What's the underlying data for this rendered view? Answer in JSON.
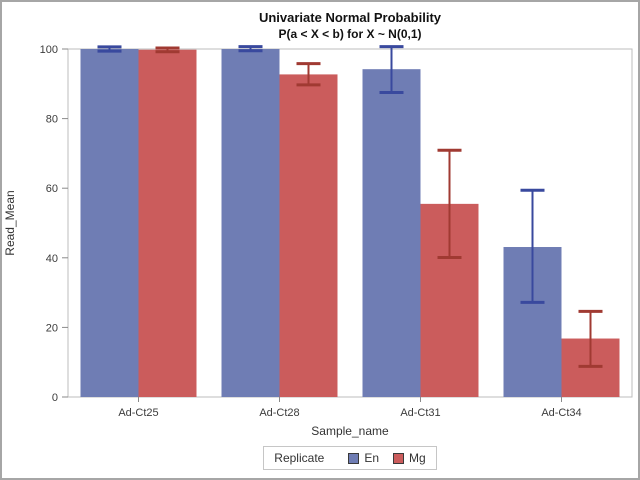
{
  "figure": {
    "title": "Univariate Normal Probability",
    "subtitle": "P(a < X < b) for X ~ N(0,1)"
  },
  "chart_data": {
    "type": "bar",
    "title": "Univariate Normal Probability",
    "subtitle": "P(a < X < b) for X ~ N(0,1)",
    "xlabel": "Sample_name",
    "ylabel": "Read_Mean",
    "categories": [
      "Ad-Ct25",
      "Ad-Ct28",
      "Ad-Ct31",
      "Ad-Ct34"
    ],
    "series": [
      {
        "name": "En",
        "color": "#6f7db4",
        "error_color": "#39499e",
        "values": [
          100,
          100,
          94.2,
          43.1
        ],
        "errors": [
          [
            99.4,
            100.6
          ],
          [
            99.5,
            100.7
          ],
          [
            87.5,
            100.7
          ],
          [
            27.2,
            59.4
          ]
        ]
      },
      {
        "name": "Mg",
        "color": "#cb5c5c",
        "error_color": "#a03a32",
        "values": [
          99.8,
          92.7,
          55.5,
          16.8
        ],
        "errors": [
          [
            99.2,
            100.3
          ],
          [
            89.7,
            95.8
          ],
          [
            40.1,
            70.9
          ],
          [
            8.8,
            24.6
          ]
        ]
      }
    ],
    "ylim": [
      0,
      100
    ],
    "yticks": [
      0,
      20,
      40,
      60,
      80,
      100
    ],
    "grid": false,
    "legend_title": "Replicate",
    "legend_position": "bottom",
    "frame_color": "#bdbdbd",
    "tick_color": "#8a8a8a",
    "text_color": "#3c3c3c"
  }
}
